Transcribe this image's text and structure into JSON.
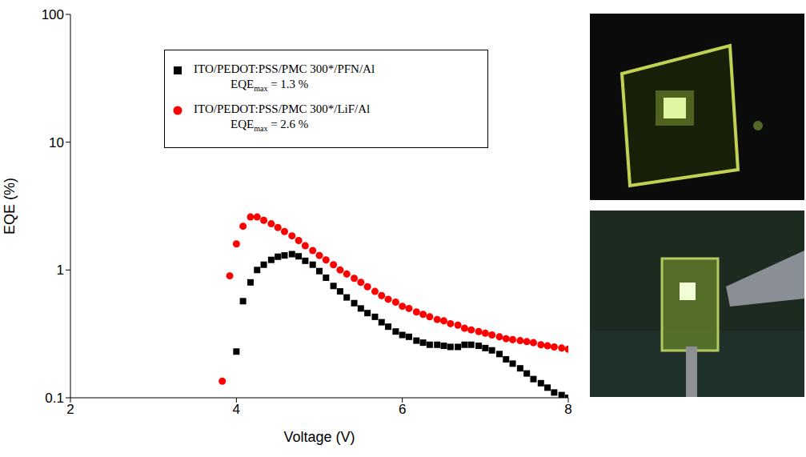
{
  "chart_data": {
    "type": "scatter",
    "x_label": "Voltage (V)",
    "y_label": "EQE (%)",
    "log": "y",
    "grid": false,
    "legend": "top",
    "xlim": [
      2,
      8
    ],
    "xticks": [
      2,
      4,
      6,
      8
    ],
    "ylim": [
      0.1,
      100
    ],
    "yticks": [
      0.1,
      1,
      10,
      100
    ],
    "x": [
      3.83,
      3.92,
      4.0,
      4.08,
      4.17,
      4.25,
      4.33,
      4.42,
      4.5,
      4.58,
      4.67,
      4.75,
      4.83,
      4.92,
      5.0,
      5.08,
      5.17,
      5.25,
      5.33,
      5.42,
      5.5,
      5.58,
      5.67,
      5.75,
      5.83,
      5.92,
      6.0,
      6.08,
      6.17,
      6.25,
      6.33,
      6.42,
      6.5,
      6.58,
      6.67,
      6.75,
      6.83,
      6.92,
      7.0,
      7.08,
      7.17,
      7.25,
      7.33,
      7.42,
      7.5,
      7.58,
      7.67,
      7.75,
      7.83,
      7.92,
      8.0
    ],
    "series": [
      {
        "name": "ITO/PEDOT:PSS/PMC 300*/PFN/Al",
        "annotation": [
          "EQE",
          "max",
          " = 1.3 %"
        ],
        "color": "#000000",
        "marker": "square",
        "values": [
          null,
          null,
          0.23,
          0.57,
          0.8,
          1.0,
          1.1,
          1.2,
          1.27,
          1.3,
          1.33,
          1.28,
          1.18,
          1.1,
          0.98,
          0.87,
          0.75,
          0.68,
          0.61,
          0.55,
          0.5,
          0.46,
          0.43,
          0.39,
          0.36,
          0.33,
          0.31,
          0.3,
          0.28,
          0.27,
          0.26,
          0.26,
          0.255,
          0.25,
          0.25,
          0.26,
          0.26,
          0.255,
          0.245,
          0.235,
          0.22,
          0.2,
          0.185,
          0.17,
          0.155,
          0.14,
          0.13,
          0.12,
          0.11,
          0.105,
          0.1
        ]
      },
      {
        "name": "ITO/PEDOT:PSS/PMC 300*/LiF/Al",
        "annotation": [
          "EQE",
          "max",
          " = 2.6 %"
        ],
        "color": "#ff0000",
        "marker": "circle",
        "values": [
          0.135,
          0.9,
          1.6,
          2.2,
          2.6,
          2.6,
          2.45,
          2.3,
          2.15,
          2.0,
          1.85,
          1.7,
          1.55,
          1.42,
          1.3,
          1.2,
          1.1,
          1.0,
          0.93,
          0.86,
          0.8,
          0.74,
          0.68,
          0.63,
          0.59,
          0.56,
          0.52,
          0.5,
          0.47,
          0.45,
          0.43,
          0.41,
          0.4,
          0.38,
          0.37,
          0.35,
          0.34,
          0.33,
          0.32,
          0.31,
          0.3,
          0.29,
          0.285,
          0.28,
          0.275,
          0.27,
          0.26,
          0.255,
          0.25,
          0.245,
          0.24
        ]
      }
    ]
  }
}
